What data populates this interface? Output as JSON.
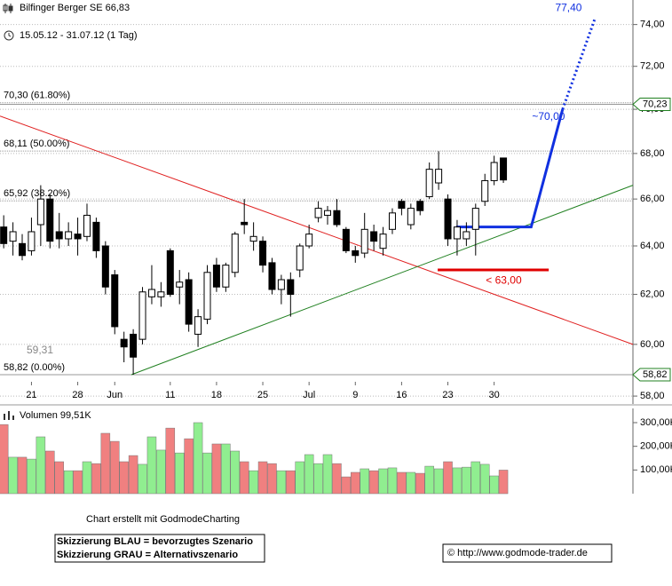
{
  "chart_data": {
    "type": "candlestick",
    "title": "Bilfinger Berger SE 66,83",
    "subtitle": "15.05.12 - 31.07.12 (1 Tag)",
    "log_scale": true,
    "grid": true,
    "up_color": "#ffffff",
    "down_color": "#000000",
    "xlim": [
      -0.4,
      68
    ],
    "xticks": [
      {
        "value": 3,
        "label": "21"
      },
      {
        "value": 8,
        "label": "28"
      },
      {
        "value": 12,
        "label": "Jun"
      },
      {
        "value": 18,
        "label": "11"
      },
      {
        "value": 23,
        "label": "18"
      },
      {
        "value": 28,
        "label": "25"
      },
      {
        "value": 33,
        "label": "Jul"
      },
      {
        "value": 38,
        "label": "9"
      },
      {
        "value": 43,
        "label": "16"
      },
      {
        "value": 48,
        "label": "23"
      },
      {
        "value": 53,
        "label": "30"
      }
    ],
    "ylim": [
      57.7,
      75.2
    ],
    "yticks": [
      {
        "value": 58,
        "label": "58,00"
      },
      {
        "value": 60,
        "label": "60,00"
      },
      {
        "value": 62,
        "label": "62,00"
      },
      {
        "value": 64,
        "label": "64,00"
      },
      {
        "value": 66,
        "label": "66,00"
      },
      {
        "value": 68,
        "label": "68,00"
      },
      {
        "value": 70,
        "label": "70,00"
      },
      {
        "value": 72,
        "label": "72,00"
      },
      {
        "value": 74,
        "label": "74,00"
      }
    ],
    "open": [
      64.8,
      64.2,
      64.1,
      63.8,
      64.9,
      66.0,
      64.6,
      64.3,
      64.5,
      64.4,
      65.0,
      64.0,
      62.8,
      60.2,
      60.4,
      60.2,
      61.9,
      61.9,
      63.8,
      62.3,
      62.6,
      60.4,
      61.0,
      63.2,
      62.3,
      62.9,
      65.0,
      64.2,
      64.2,
      63.3,
      62.2,
      62.6,
      63.0,
      64.0,
      65.2,
      65.3,
      65.5,
      64.7,
      63.8,
      63.7,
      64.6,
      63.9,
      64.7,
      65.9,
      64.9,
      65.9,
      66.1,
      66.7,
      66.0,
      64.3,
      64.3,
      64.7,
      65.9,
      66.8,
      67.8
    ],
    "high": [
      65.3,
      65.0,
      64.5,
      65.2,
      66.6,
      66.2,
      65.4,
      65.0,
      65.2,
      65.8,
      65.2,
      64.2,
      63.0,
      60.5,
      60.6,
      62.3,
      63.2,
      62.5,
      63.9,
      63.0,
      62.9,
      61.4,
      63.2,
      63.5,
      63.3,
      64.6,
      66.0,
      65.0,
      64.4,
      63.5,
      62.8,
      62.9,
      64.1,
      64.9,
      65.9,
      65.7,
      66.0,
      64.8,
      64.0,
      65.4,
      64.9,
      64.8,
      65.6,
      66.0,
      65.8,
      66.0,
      67.6,
      68.1,
      66.2,
      65.1,
      65.0,
      65.8,
      67.1,
      67.9,
      67.8
    ],
    "low": [
      63.9,
      63.6,
      63.4,
      63.6,
      64.0,
      63.9,
      63.9,
      64.0,
      63.6,
      64.2,
      63.5,
      62.0,
      60.4,
      59.3,
      58.82,
      60.0,
      61.6,
      61.5,
      61.9,
      61.6,
      60.5,
      59.9,
      60.8,
      62.1,
      62.1,
      62.7,
      64.5,
      63.8,
      62.9,
      62.0,
      61.6,
      61.1,
      62.7,
      63.9,
      65.0,
      64.9,
      64.8,
      63.7,
      63.3,
      63.5,
      63.8,
      63.6,
      64.5,
      65.3,
      64.7,
      65.3,
      66.0,
      66.4,
      64.0,
      63.6,
      64.0,
      63.6,
      65.7,
      66.6,
      66.7
    ],
    "close": [
      64.1,
      64.6,
      63.6,
      64.6,
      66.0,
      64.2,
      64.3,
      64.6,
      64.3,
      65.3,
      63.8,
      62.3,
      60.7,
      59.9,
      59.5,
      62.1,
      62.2,
      62.1,
      62.0,
      62.5,
      60.8,
      61.1,
      62.9,
      62.3,
      63.2,
      64.5,
      64.9,
      64.4,
      63.2,
      62.2,
      62.6,
      62.0,
      64.0,
      64.5,
      65.6,
      65.5,
      64.9,
      63.8,
      63.6,
      64.7,
      64.2,
      64.5,
      65.4,
      65.6,
      65.6,
      65.5,
      67.3,
      67.3,
      64.3,
      64.8,
      64.6,
      65.6,
      66.8,
      67.6,
      66.83
    ],
    "fib_levels": [
      {
        "value": 70.3,
        "label": "70,30 (61.80%)"
      },
      {
        "value": 68.11,
        "label": "68,11 (50.00%)"
      },
      {
        "value": 65.92,
        "label": "65,92 (38.20%)"
      },
      {
        "value": 58.82,
        "label": "58,82 (0.00%)"
      }
    ],
    "price_markers": [
      {
        "value": 70.23,
        "label": "70,23"
      },
      {
        "value": 58.82,
        "label": "58,82"
      }
    ],
    "low_label": "59,31",
    "trendlines": [
      {
        "color": "#e02020",
        "points": [
          [
            -0.4,
            69.69
          ],
          [
            68,
            60.0
          ]
        ]
      },
      {
        "color": "#208020",
        "points": [
          [
            13.8,
            58.82
          ],
          [
            68,
            66.6
          ]
        ]
      },
      {
        "color": "#e00000",
        "width": 3,
        "points": [
          [
            46.9,
            63.0
          ],
          [
            58.9,
            63.0
          ]
        ]
      },
      {
        "color": "#1030e0",
        "width": 3,
        "points": [
          [
            48.9,
            64.8
          ],
          [
            57,
            64.8
          ],
          [
            60.4,
            70.0
          ]
        ]
      },
      {
        "color": "#1030e0",
        "width": 3,
        "dotted": true,
        "points": [
          [
            60.4,
            70.0
          ],
          [
            63.9,
            74.3
          ]
        ]
      }
    ],
    "annotations": [
      {
        "text": "~70,00",
        "color": "#1030e0",
        "at": [
          57.1,
          69.65
        ]
      },
      {
        "text": "77,40",
        "color": "#1030e0",
        "at": [
          59.6,
          74.8
        ]
      },
      {
        "text": "< 63,00",
        "color": "#e00000",
        "at": [
          52.1,
          62.55
        ]
      }
    ],
    "volume": {
      "title": "Volumen 99,51K",
      "up_color": "#90ee90",
      "down_color": "#f08080",
      "ylim": [
        0,
        360
      ],
      "yticks": [
        {
          "value": 100,
          "label": "100,00K"
        },
        {
          "value": 200,
          "label": "200,00K"
        },
        {
          "value": 300,
          "label": "300,00K"
        }
      ],
      "values": [
        292,
        154,
        154,
        146,
        240,
        180,
        135,
        97,
        97,
        135,
        127,
        255,
        221,
        135,
        161,
        124,
        240,
        184,
        277,
        172,
        232,
        300,
        172,
        210,
        210,
        180,
        135,
        97,
        135,
        127,
        97,
        97,
        135,
        165,
        127,
        165,
        127,
        71,
        90,
        105,
        97,
        105,
        109,
        90,
        90,
        86,
        116,
        105,
        135,
        109,
        112,
        135,
        124,
        75,
        99.51
      ]
    },
    "credit": "Chart erstellt mit GodmodeCharting",
    "legend_lines": [
      "Skizzierung BLAU = bevorzugtes Szenario",
      "Skizzierung GRAU = Alternativszenario"
    ],
    "source": "© http://www.godmode-trader.de"
  }
}
